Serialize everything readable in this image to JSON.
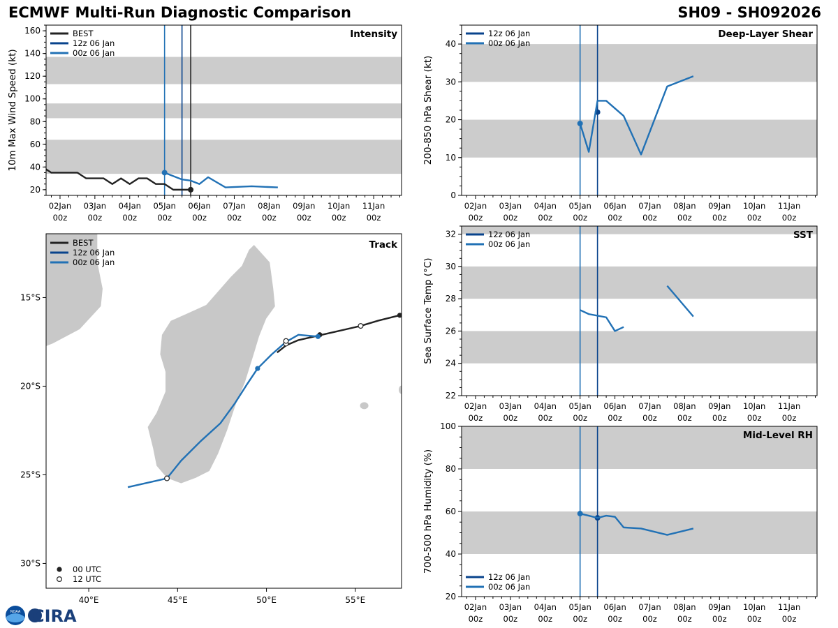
{
  "header": {
    "title": "ECMWF Multi-Run Diagnostic Comparison",
    "storm": "SH09 - SH092026"
  },
  "logo": {
    "text": "CIRA",
    "agency": "NOAA"
  },
  "colors": {
    "best": "#222222",
    "run12z": "#08438c",
    "run00z": "#2171b5",
    "band": "#cccccc",
    "land": "#c8c8c8"
  },
  "time_axis": {
    "day_labels": [
      "02Jan",
      "03Jan",
      "04Jan",
      "05Jan",
      "06Jan",
      "07Jan",
      "08Jan",
      "09Jan",
      "10Jan",
      "11Jan"
    ],
    "hour_label": "00z"
  },
  "legend": {
    "best": "BEST",
    "run12z": "12z 06 Jan",
    "run00z": "00z 06 Jan",
    "marker00": "00 UTC",
    "marker12": "12 UTC"
  },
  "chart_data": [
    {
      "id": "intensity",
      "type": "line",
      "title": "Intensity",
      "ylabel": "10m Max Wind Speed (kt)",
      "xlim": [
        0.6,
        10.8
      ],
      "ylim": [
        15,
        165
      ],
      "yticks": [
        20,
        40,
        60,
        80,
        100,
        120,
        140,
        160
      ],
      "bands": [
        [
          34,
          64
        ],
        [
          83,
          96
        ],
        [
          113,
          137
        ]
      ],
      "vlines": [
        {
          "x": 4.0,
          "color": "run00z"
        },
        {
          "x": 4.5,
          "color": "run12z"
        },
        {
          "x": 4.75,
          "color": "best"
        }
      ],
      "series": [
        {
          "name": "BEST",
          "color": "best",
          "x": [
            0.5,
            0.75,
            1.0,
            1.25,
            1.5,
            1.75,
            2.0,
            2.25,
            2.5,
            2.75,
            3.0,
            3.25,
            3.5,
            3.75,
            4.0,
            4.25,
            4.5,
            4.75
          ],
          "y": [
            40,
            35,
            35,
            35,
            35,
            30,
            30,
            30,
            25,
            30,
            25,
            30,
            30,
            25,
            25,
            20,
            20,
            20
          ],
          "markers": [
            {
              "x": 4.75,
              "y": 20
            }
          ]
        },
        {
          "name": "00z 06 Jan",
          "color": "run00z",
          "x": [
            4.0,
            4.5,
            4.75,
            5.0,
            5.25,
            5.75,
            6.5,
            7.25
          ],
          "y": [
            35,
            29,
            28,
            25,
            31,
            22,
            23,
            22
          ],
          "markers": [
            {
              "x": 4.0,
              "y": 35
            }
          ]
        }
      ]
    },
    {
      "id": "shear",
      "type": "line",
      "title": "Deep-Layer Shear",
      "ylabel": "200-850 hPa Shear (kt)",
      "xlim": [
        0.6,
        10.8
      ],
      "ylim": [
        0,
        45
      ],
      "yticks": [
        0,
        10,
        20,
        30,
        40
      ],
      "bands": [
        [
          10,
          20
        ],
        [
          30,
          40
        ]
      ],
      "vlines": [
        {
          "x": 4.0,
          "color": "run00z"
        },
        {
          "x": 4.5,
          "color": "run12z"
        }
      ],
      "series": [
        {
          "name": "12z 06 Jan",
          "color": "run12z",
          "x": [
            4.5
          ],
          "y": [
            22
          ],
          "markers": [
            {
              "x": 4.5,
              "y": 22
            }
          ]
        },
        {
          "name": "00z 06 Jan",
          "color": "run00z",
          "x": [
            4.0,
            4.25,
            4.5,
            4.75,
            5.0,
            5.25,
            5.75,
            6.5,
            7.25
          ],
          "y": [
            19,
            11.5,
            25,
            25,
            23,
            21,
            10.8,
            28.8,
            31.5
          ],
          "markers": [
            {
              "x": 4.0,
              "y": 19
            }
          ]
        }
      ]
    },
    {
      "id": "sst",
      "type": "line",
      "title": "SST",
      "ylabel": "Sea Surface Temp (°C)",
      "xlim": [
        0.6,
        10.8
      ],
      "ylim": [
        22,
        32.5
      ],
      "yticks": [
        22,
        24,
        26,
        28,
        30,
        32
      ],
      "bands": [
        [
          24,
          26
        ],
        [
          28,
          30
        ],
        [
          32,
          34
        ]
      ],
      "vlines": [
        {
          "x": 4.0,
          "color": "run00z"
        },
        {
          "x": 4.5,
          "color": "run12z"
        }
      ],
      "series": [
        {
          "name": "00z 06 Jan seg1",
          "color": "run00z",
          "x": [
            4.0,
            4.25,
            4.5,
            4.75,
            5.0,
            5.25
          ],
          "y": [
            27.3,
            27.05,
            26.95,
            26.85,
            26.0,
            26.25
          ],
          "markers": []
        },
        {
          "name": "00z 06 Jan seg2",
          "color": "run00z",
          "x": [
            6.5,
            7.25
          ],
          "y": [
            28.8,
            26.9
          ],
          "markers": []
        }
      ]
    },
    {
      "id": "rh",
      "type": "line",
      "title": "Mid-Level RH",
      "ylabel": "700-500 hPa Humidity (%)",
      "xlim": [
        0.6,
        10.8
      ],
      "ylim": [
        20,
        100
      ],
      "yticks": [
        20,
        40,
        60,
        80,
        100
      ],
      "bands": [
        [
          40,
          60
        ],
        [
          80,
          100
        ]
      ],
      "vlines": [
        {
          "x": 4.0,
          "color": "run00z"
        },
        {
          "x": 4.5,
          "color": "run12z"
        }
      ],
      "series": [
        {
          "name": "12z 06 Jan",
          "color": "run12z",
          "x": [
            4.5
          ],
          "y": [
            57
          ],
          "markers": [
            {
              "x": 4.5,
              "y": 57
            }
          ]
        },
        {
          "name": "00z 06 Jan",
          "color": "run00z",
          "x": [
            4.0,
            4.25,
            4.5,
            4.75,
            5.0,
            5.25,
            5.75,
            6.5,
            7.25
          ],
          "y": [
            59,
            58,
            57,
            58,
            57.5,
            52.5,
            52,
            49,
            52
          ],
          "markers": [
            {
              "x": 4.0,
              "y": 59
            }
          ]
        }
      ]
    },
    {
      "id": "track",
      "type": "scatter",
      "title": "Track",
      "xlabel_ticks": [
        "40°E",
        "45°E",
        "50°E",
        "55°E"
      ],
      "xticks": [
        40,
        45,
        50,
        55
      ],
      "ylabel_ticks": [
        "15°S",
        "20°S",
        "25°S",
        "30°S"
      ],
      "yticks": [
        -15,
        -20,
        -25,
        -30
      ],
      "lon_range": [
        37.6,
        57.6
      ],
      "lat_range": [
        -31.4,
        -11.4
      ],
      "series": [
        {
          "name": "BEST",
          "color": "best",
          "lon": [
            57.5,
            56.3,
            55.3,
            54.0,
            52.9,
            51.8,
            51.1,
            50.6
          ],
          "lat": [
            -16.0,
            -16.3,
            -16.6,
            -16.9,
            -17.15,
            -17.4,
            -17.7,
            -18.1
          ],
          "markers": [
            {
              "lon": 57.5,
              "lat": -16.0,
              "kind": "00"
            },
            {
              "lon": 55.3,
              "lat": -16.6,
              "kind": "12"
            },
            {
              "lon": 53.0,
              "lat": -17.1,
              "kind": "00"
            },
            {
              "lon": 51.1,
              "lat": -17.6,
              "kind": "12"
            }
          ]
        },
        {
          "name": "00z 06 Jan",
          "color": "run00z",
          "lon": [
            52.9,
            51.8,
            51.1,
            50.3,
            49.5,
            48.9,
            48.2,
            47.4,
            46.3,
            45.2,
            44.4,
            42.2
          ],
          "lat": [
            -17.2,
            -17.1,
            -17.5,
            -18.2,
            -19.0,
            -19.9,
            -21.0,
            -22.1,
            -23.1,
            -24.2,
            -25.2,
            -25.7
          ],
          "markers": [
            {
              "lon": 52.9,
              "lat": -17.2,
              "kind": "00"
            },
            {
              "lon": 51.1,
              "lat": -17.45,
              "kind": "12"
            },
            {
              "lon": 49.5,
              "lat": -19.0,
              "kind": "00"
            },
            {
              "lon": 44.4,
              "lat": -25.2,
              "kind": "12"
            }
          ]
        }
      ]
    }
  ]
}
